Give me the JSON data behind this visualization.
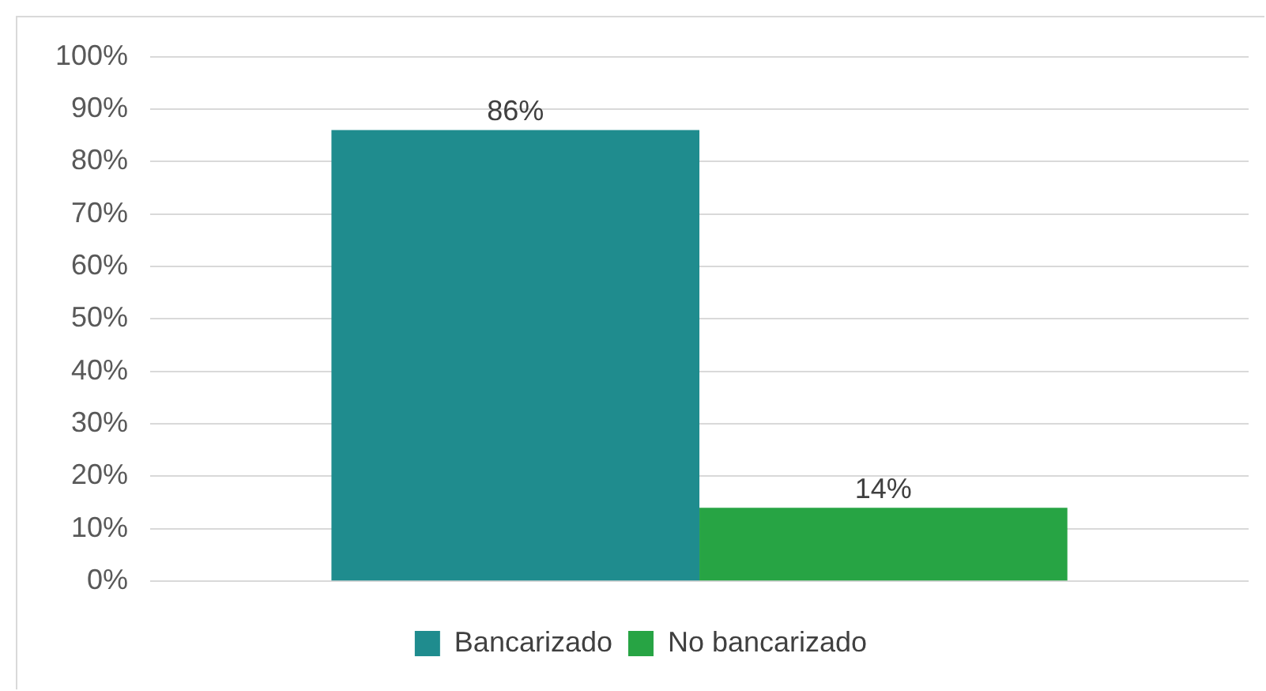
{
  "chart_data": {
    "type": "bar",
    "categories": [
      null
    ],
    "series": [
      {
        "name": "Bancarizado",
        "color": "#1f8c8e",
        "values": [
          86
        ],
        "value_labels": [
          "86%"
        ]
      },
      {
        "name": "No bancarizado",
        "color": "#27a444",
        "values": [
          14
        ],
        "value_labels": [
          "14%"
        ]
      }
    ],
    "ylim": [
      0,
      100
    ],
    "yticks": [
      {
        "value": 0,
        "label": "0%"
      },
      {
        "value": 10,
        "label": "10%"
      },
      {
        "value": 20,
        "label": "20%"
      },
      {
        "value": 30,
        "label": "30%"
      },
      {
        "value": 40,
        "label": "40%"
      },
      {
        "value": 50,
        "label": "50%"
      },
      {
        "value": 60,
        "label": "60%"
      },
      {
        "value": 70,
        "label": "70%"
      },
      {
        "value": 80,
        "label": "80%"
      },
      {
        "value": 90,
        "label": "90%"
      },
      {
        "value": 100,
        "label": "100%"
      }
    ],
    "grid": "y",
    "legend": "bottom"
  }
}
